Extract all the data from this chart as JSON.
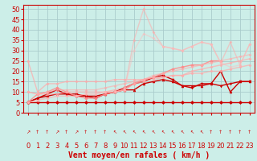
{
  "xlabel": "Vent moyen/en rafales ( km/h )",
  "background_color": "#cceee8",
  "grid_color": "#aacccc",
  "xlim": [
    -0.5,
    23.5
  ],
  "ylim": [
    0,
    52
  ],
  "yticks": [
    0,
    5,
    10,
    15,
    20,
    25,
    30,
    35,
    40,
    45,
    50
  ],
  "xticks": [
    0,
    1,
    2,
    3,
    4,
    5,
    6,
    7,
    8,
    9,
    10,
    11,
    12,
    13,
    14,
    15,
    16,
    17,
    18,
    19,
    20,
    21,
    22,
    23
  ],
  "series": [
    {
      "x": [
        0,
        1,
        2,
        3,
        4,
        5,
        6,
        7,
        8,
        9,
        10,
        11,
        12,
        13,
        14,
        15,
        16,
        17,
        18,
        19,
        20,
        21,
        22,
        23
      ],
      "y": [
        5,
        5,
        5,
        5,
        5,
        5,
        5,
        5,
        5,
        5,
        5,
        5,
        5,
        5,
        5,
        5,
        5,
        5,
        5,
        5,
        5,
        5,
        5,
        5
      ],
      "color": "#cc0000",
      "alpha": 1.0,
      "lw": 1.0,
      "marker": "D",
      "ms": 2.0
    },
    {
      "x": [
        0,
        1,
        2,
        3,
        4,
        5,
        6,
        7,
        8,
        9,
        10,
        11,
        12,
        13,
        14,
        15,
        16,
        17,
        18,
        19,
        20,
        21,
        22,
        23
      ],
      "y": [
        5,
        7,
        8,
        9,
        9,
        8,
        8,
        8,
        9,
        10,
        11,
        11,
        14,
        15,
        16,
        15,
        13,
        13,
        13,
        14,
        20,
        10,
        15,
        15
      ],
      "color": "#cc0000",
      "alpha": 1.0,
      "lw": 1.0,
      "marker": "^",
      "ms": 2.0
    },
    {
      "x": [
        0,
        1,
        2,
        3,
        4,
        5,
        6,
        7,
        8,
        9,
        10,
        11,
        12,
        13,
        14,
        15,
        16,
        17,
        18,
        19,
        20,
        21,
        22,
        23
      ],
      "y": [
        5,
        7,
        9,
        11,
        9,
        9,
        8,
        7,
        9,
        10,
        12,
        14,
        15,
        17,
        18,
        16,
        13,
        12,
        14,
        14,
        13,
        14,
        15,
        15
      ],
      "color": "#cc0000",
      "alpha": 1.0,
      "lw": 1.0,
      "marker": "v",
      "ms": 2.0
    },
    {
      "x": [
        0,
        1,
        2,
        3,
        4,
        5,
        6,
        7,
        8,
        9,
        10,
        11,
        12,
        13,
        14,
        15,
        16,
        17,
        18,
        19,
        20
      ],
      "y": [
        5,
        9,
        10,
        12,
        10,
        8,
        7,
        7,
        9,
        10,
        11,
        14,
        16,
        17,
        19,
        21,
        22,
        23,
        23,
        25,
        25
      ],
      "color": "#ff8888",
      "alpha": 0.85,
      "lw": 1.0,
      "marker": "D",
      "ms": 1.8
    },
    {
      "x": [
        0,
        1,
        2,
        3,
        4,
        5,
        6,
        7,
        8,
        9,
        10,
        11,
        12,
        13,
        14,
        15,
        16,
        17,
        18,
        19,
        20,
        21,
        22,
        23
      ],
      "y": [
        25,
        10,
        14,
        14,
        15,
        15,
        15,
        15,
        15,
        16,
        16,
        16,
        16,
        17,
        17,
        18,
        18,
        19,
        19,
        20,
        20,
        21,
        22,
        23
      ],
      "color": "#ffaaaa",
      "alpha": 0.7,
      "lw": 1.0,
      "marker": "D",
      "ms": 1.5
    },
    {
      "x": [
        0,
        1,
        2,
        3,
        4,
        5,
        6,
        7,
        8,
        9,
        10,
        11,
        12,
        13,
        14,
        15,
        16,
        17,
        18,
        19,
        20,
        21,
        22,
        23
      ],
      "y": [
        10,
        9,
        9,
        9,
        10,
        10,
        10,
        10,
        10,
        11,
        12,
        14,
        15,
        16,
        17,
        18,
        18,
        20,
        21,
        22,
        23,
        24,
        25,
        26
      ],
      "color": "#ffaaaa",
      "alpha": 0.7,
      "lw": 1.0,
      "marker": "D",
      "ms": 1.5
    },
    {
      "x": [
        0,
        1,
        2,
        3,
        4,
        5,
        6,
        7,
        8,
        9,
        10,
        11,
        12,
        13,
        14,
        15,
        16,
        17,
        18,
        19,
        20,
        21,
        22,
        23
      ],
      "y": [
        10,
        9,
        10,
        11,
        11,
        11,
        11,
        11,
        12,
        13,
        14,
        15,
        16,
        18,
        19,
        20,
        21,
        22,
        23,
        24,
        25,
        26,
        27,
        28
      ],
      "color": "#ffaaaa",
      "alpha": 0.6,
      "lw": 1.0,
      "marker": "D",
      "ms": 1.5
    },
    {
      "x": [
        0,
        1,
        2,
        3,
        4,
        5,
        6,
        7,
        8,
        9,
        10,
        11,
        12,
        13,
        14,
        15,
        16,
        17,
        18,
        19,
        20,
        21,
        22,
        23
      ],
      "y": [
        5,
        6,
        7,
        8,
        8,
        8,
        9,
        9,
        10,
        10,
        11,
        35,
        50,
        39,
        32,
        31,
        30,
        32,
        34,
        33,
        24,
        34,
        23,
        33
      ],
      "color": "#ffaaaa",
      "alpha": 0.55,
      "lw": 1.0,
      "marker": "D",
      "ms": 1.5
    },
    {
      "x": [
        0,
        1,
        2,
        3,
        4,
        5,
        6,
        7,
        8,
        9,
        10,
        11,
        12,
        13,
        14,
        15,
        16,
        17,
        18,
        19,
        20,
        21,
        22,
        23
      ],
      "y": [
        5,
        6,
        7,
        8,
        8,
        8,
        9,
        9,
        10,
        10,
        11,
        30,
        38,
        36,
        32,
        31,
        30,
        32,
        34,
        33,
        24,
        22,
        23,
        33
      ],
      "color": "#ffbbbb",
      "alpha": 0.45,
      "lw": 1.0,
      "marker": "D",
      "ms": 1.5
    }
  ],
  "wind_arrows": [
    "↗",
    "↑",
    "↑",
    "↗",
    "↑",
    "↗",
    "↑",
    "↑",
    "↑",
    "↖",
    "↖",
    "↖",
    "↖",
    "↖",
    "↖",
    "↖",
    "↖",
    "↖",
    "↖",
    "↑",
    "↑",
    "↑",
    "↑",
    "↑"
  ],
  "xlabel_color": "#cc0000",
  "xlabel_fontsize": 7,
  "tick_color": "#cc0000",
  "tick_fontsize": 6
}
